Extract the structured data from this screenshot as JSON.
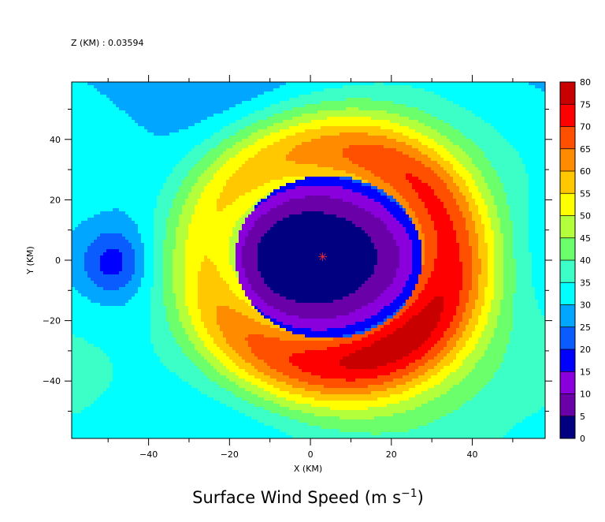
{
  "chart_data": {
    "type": "heatmap",
    "header": "Z (KM) : 0.03594",
    "title_main": "Surface Wind Speed (m s",
    "title_sup": "−1",
    "title_close": ")",
    "xlabel": "X (KM)",
    "ylabel": "Y (KM)",
    "xlim": [
      -59,
      58
    ],
    "ylim": [
      -59,
      59
    ],
    "x_ticks": [
      -40,
      -20,
      0,
      20,
      40
    ],
    "x_tick_labels": [
      "−40",
      "−20",
      "0",
      "20",
      "40"
    ],
    "y_ticks": [
      -40,
      -20,
      0,
      20,
      40
    ],
    "y_tick_labels": [
      "−40",
      "−20",
      "0",
      "20",
      "40"
    ],
    "colorbar": {
      "levels": [
        0,
        5,
        10,
        15,
        20,
        25,
        30,
        35,
        40,
        45,
        50,
        55,
        60,
        65,
        70,
        75,
        80
      ],
      "level_labels": [
        "0",
        "5",
        "10",
        "15",
        "20",
        "25",
        "30",
        "35",
        "40",
        "45",
        "50",
        "55",
        "60",
        "65",
        "70",
        "75",
        "80"
      ],
      "colors": [
        "#000080",
        "#6a00a8",
        "#8a00dc",
        "#0000ff",
        "#0a5cff",
        "#00a6ff",
        "#00ffff",
        "#3cffc8",
        "#6cff6c",
        "#b4ff3c",
        "#ffff00",
        "#ffc800",
        "#ff8c00",
        "#ff5000",
        "#ff0000",
        "#c80000"
      ]
    },
    "storm_center": {
      "x": 3,
      "y": 1
    },
    "wind_field": {
      "description_units": "m s-1",
      "eye_center": [
        4.5,
        1.0
      ],
      "eyewall_radius_x": 23,
      "eyewall_radius_y": 27,
      "peak_speed": 66,
      "peak_quadrant_angle_deg": -40,
      "background_speed": 33
    }
  }
}
